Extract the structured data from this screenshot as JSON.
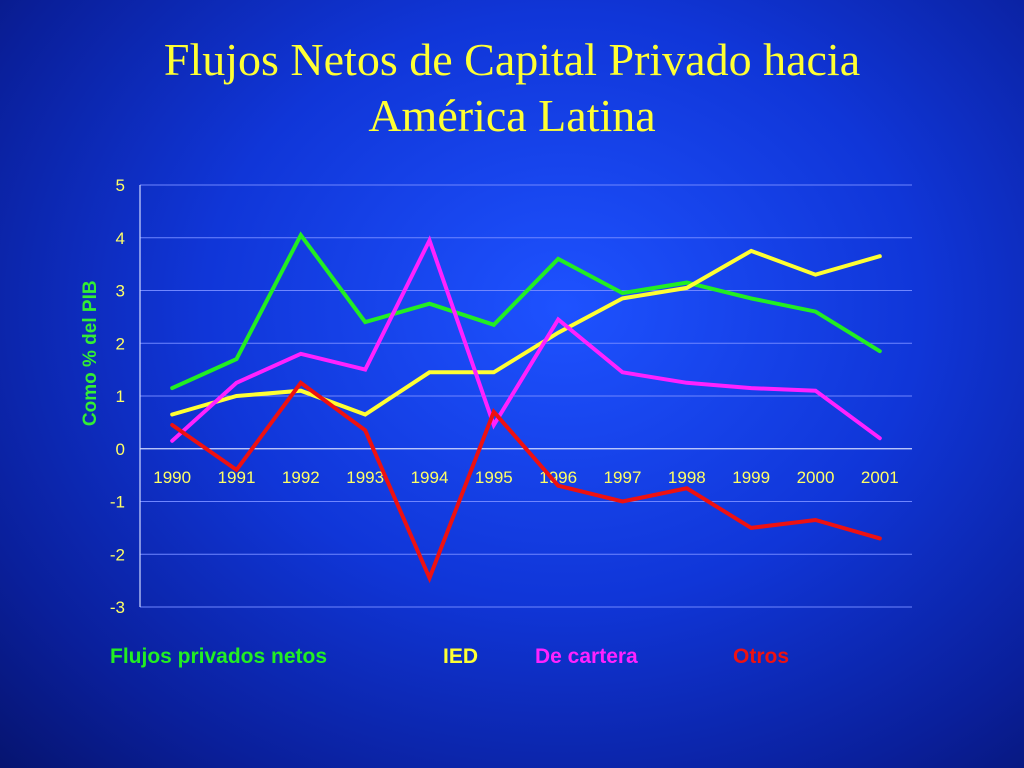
{
  "slide": {
    "title_line1": "Flujos Netos de Capital Privado hacia",
    "title_line2": "América Latina"
  },
  "colors": {
    "title": "#ffff33",
    "ticks": "#ffff66",
    "ylabel": "#33ee33",
    "gridline": "#6f86ff",
    "axis": "#cfd8ff"
  },
  "chart_data": {
    "type": "line",
    "title": "Flujos Netos de Capital Privado hacia América Latina",
    "ylabel": "Como % del PIB",
    "xlabel": "",
    "categories": [
      "1990",
      "1991",
      "1992",
      "1993",
      "1994",
      "1995",
      "1996",
      "1997",
      "1998",
      "1999",
      "2000",
      "2001"
    ],
    "ylim": [
      -3,
      5
    ],
    "yticks": [
      "5",
      "4",
      "3",
      "2",
      "1",
      "0",
      "-1",
      "-2",
      "-3"
    ],
    "grid": true,
    "legend_position": "bottom",
    "series": [
      {
        "name": "Flujos privados netos",
        "color": "#22ee22",
        "values": [
          1.15,
          1.7,
          4.05,
          2.4,
          2.75,
          2.35,
          3.6,
          2.95,
          3.15,
          2.85,
          2.6,
          1.85
        ]
      },
      {
        "name": "IED",
        "color": "#ffff33",
        "values": [
          0.65,
          1.0,
          1.1,
          0.65,
          1.45,
          1.45,
          2.2,
          2.85,
          3.05,
          3.75,
          3.3,
          3.65
        ]
      },
      {
        "name": "De cartera",
        "color": "#ff22ff",
        "values": [
          0.15,
          1.25,
          1.8,
          1.5,
          3.95,
          0.45,
          2.45,
          1.45,
          1.25,
          1.15,
          1.1,
          0.2
        ]
      },
      {
        "name": "Otros",
        "color": "#ee1111",
        "values": [
          0.45,
          -0.4,
          1.25,
          0.35,
          -2.45,
          0.7,
          -0.7,
          -1.0,
          -0.75,
          -1.5,
          -1.35,
          -1.7
        ]
      }
    ]
  }
}
